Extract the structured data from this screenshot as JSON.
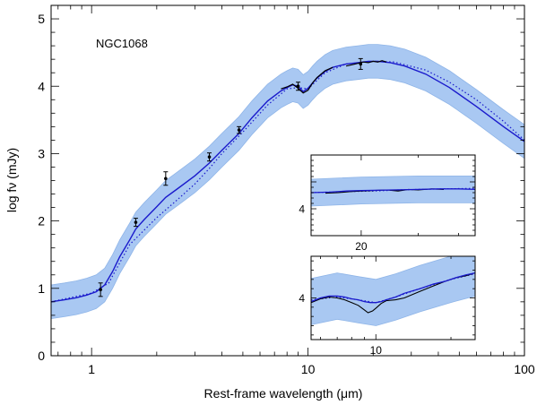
{
  "chart_data": [
    {
      "type": "line",
      "object_label": "NGC1068",
      "xlabel": "Rest-frame wavelength (μm)",
      "ylabel": "log fν (mJy)",
      "xscale": "log",
      "xlim": [
        0.65,
        100
      ],
      "ylim": [
        0,
        5.2
      ],
      "x_tick_labels": [
        {
          "value": 1,
          "label": "1"
        },
        {
          "value": 10,
          "label": "10"
        },
        {
          "value": 100,
          "label": "100"
        }
      ],
      "y_tick_labels": [
        {
          "value": 0,
          "label": "0"
        },
        {
          "value": 1,
          "label": "1"
        },
        {
          "value": 2,
          "label": "2"
        },
        {
          "value": 3,
          "label": "3"
        },
        {
          "value": 4,
          "label": "4"
        },
        {
          "value": 5,
          "label": "5"
        }
      ],
      "colors": {
        "model": "#1a1acc",
        "band": "#a9c8f2",
        "band_edge": "#8fb5e8",
        "data": "#000000"
      },
      "series": [
        {
          "style": "solid",
          "x": [
            0.65,
            0.75,
            0.85,
            0.95,
            1.05,
            1.15,
            1.25,
            1.35,
            1.5,
            1.6,
            1.75,
            2.0,
            2.2,
            2.5,
            3.0,
            3.5,
            4.0,
            4.8,
            5.5,
            6.5,
            7.5,
            8.0,
            8.5,
            9.0,
            9.5,
            10.0,
            10.5,
            11.0,
            12.0,
            13.0,
            15.0,
            17.0,
            19.0,
            21.0,
            24.0,
            28.0,
            35.0,
            45.0,
            60.0,
            80.0,
            100.0
          ],
          "y": [
            0.8,
            0.83,
            0.86,
            0.9,
            0.95,
            1.05,
            1.25,
            1.47,
            1.72,
            1.88,
            2.02,
            2.21,
            2.35,
            2.48,
            2.67,
            2.86,
            3.05,
            3.3,
            3.53,
            3.78,
            3.93,
            3.98,
            4.02,
            4.0,
            3.92,
            3.97,
            4.05,
            4.12,
            4.22,
            4.28,
            4.33,
            4.35,
            4.37,
            4.37,
            4.35,
            4.3,
            4.18,
            3.98,
            3.7,
            3.4,
            3.18
          ]
        },
        {
          "style": "dotted",
          "x": [
            0.65,
            1.0,
            1.2,
            1.5,
            2.0,
            2.5,
            3.0,
            3.5,
            4.0,
            5.0,
            6.5,
            8.0,
            9.0,
            10.0,
            12.0,
            15.0,
            20.0,
            25.0,
            35.0,
            45.0,
            60.0,
            80.0,
            100.0
          ],
          "y": [
            0.8,
            0.93,
            1.08,
            1.65,
            2.05,
            2.32,
            2.55,
            2.78,
            3.0,
            3.32,
            3.72,
            3.96,
            3.98,
            3.96,
            4.2,
            4.33,
            4.37,
            4.36,
            4.24,
            4.06,
            3.8,
            3.48,
            3.2
          ]
        }
      ],
      "band": {
        "x": [
          0.65,
          0.75,
          0.85,
          0.95,
          1.05,
          1.15,
          1.25,
          1.35,
          1.5,
          1.6,
          1.75,
          2.0,
          2.2,
          2.5,
          3.0,
          3.5,
          4.0,
          4.8,
          5.5,
          6.5,
          7.5,
          8.0,
          8.5,
          9.0,
          9.5,
          10.0,
          10.5,
          11.0,
          12.0,
          13.0,
          15.0,
          17.0,
          19.0,
          21.0,
          24.0,
          28.0,
          35.0,
          45.0,
          60.0,
          80.0,
          100.0
        ],
        "width": 0.25
      },
      "points": {
        "x": [
          1.1,
          1.6,
          2.2,
          3.5,
          4.8,
          9.0
        ],
        "y": [
          0.98,
          1.98,
          2.63,
          2.95,
          3.35,
          4.0
        ],
        "yerr": [
          0.1,
          0.06,
          0.1,
          0.06,
          0.05,
          0.06
        ]
      },
      "spectrum": {
        "x": [
          7.5,
          8.0,
          8.5,
          9.0,
          9.5,
          10.0,
          10.5,
          11.0,
          12.0,
          13.0
        ],
        "y": [
          3.96,
          3.99,
          4.03,
          3.97,
          3.9,
          3.94,
          4.05,
          4.13,
          4.23,
          4.28
        ]
      },
      "ir_spectrum": {
        "x": [
          15.0,
          16.0,
          17.0,
          18.0,
          19.0,
          20.0,
          21.0,
          22.0,
          23.0
        ],
        "y": [
          4.3,
          4.32,
          4.34,
          4.36,
          4.35,
          4.37,
          4.36,
          4.38,
          4.36
        ]
      },
      "spectrum_point": {
        "x": 17.5,
        "y": 4.33,
        "yerr": 0.08
      }
    },
    {
      "type": "line",
      "inset": "upper",
      "xscale": "log",
      "xlim": [
        14,
        45
      ],
      "ylim": [
        3.5,
        5.0
      ],
      "x_tick_labels": [
        {
          "value": 20,
          "label": "20"
        }
      ],
      "y_tick_labels": [
        {
          "value": 4,
          "label": "4"
        }
      ],
      "series": [
        {
          "style": "solid",
          "x": [
            14,
            16,
            18,
            20,
            25,
            30,
            35,
            40,
            45
          ],
          "y": [
            4.3,
            4.31,
            4.33,
            4.34,
            4.35,
            4.36,
            4.37,
            4.37,
            4.36
          ]
        },
        {
          "style": "dotted",
          "x": [
            14,
            18,
            22,
            26,
            30,
            36,
            45
          ],
          "y": [
            4.3,
            4.32,
            4.33,
            4.35,
            4.36,
            4.37,
            4.38
          ]
        },
        {
          "style": "data",
          "x": [
            15.5,
            17,
            18.5,
            20,
            22,
            24,
            26,
            28,
            30,
            33,
            36
          ],
          "y": [
            4.29,
            4.3,
            4.32,
            4.33,
            4.34,
            4.35,
            4.33,
            4.36,
            4.35,
            4.37,
            4.36
          ]
        }
      ],
      "band": {
        "x": [
          14,
          20,
          30,
          45
        ],
        "width": 0.25
      }
    },
    {
      "type": "line",
      "inset": "lower",
      "xscale": "log",
      "xlim": [
        5.5,
        25
      ],
      "ylim": [
        3.55,
        4.45
      ],
      "x_tick_labels": [
        {
          "value": 10,
          "label": "10"
        }
      ],
      "y_tick_labels": [
        {
          "value": 4,
          "label": "4"
        }
      ],
      "series": [
        {
          "style": "solid",
          "x": [
            5.5,
            6.0,
            6.5,
            7.0,
            7.5,
            8.0,
            8.5,
            9.0,
            9.5,
            10.0,
            10.5,
            11.0,
            12.0,
            13.0,
            15.0,
            17.0,
            19.0,
            21.0,
            23.0,
            25.0
          ],
          "y": [
            3.96,
            4.0,
            4.02,
            4.02,
            4.01,
            3.99,
            3.98,
            3.96,
            3.95,
            3.95,
            3.96,
            3.98,
            4.01,
            4.05,
            4.1,
            4.15,
            4.18,
            4.22,
            4.25,
            4.27
          ]
        },
        {
          "style": "dotted",
          "x": [
            5.5,
            7.0,
            8.5,
            10.0,
            12.0,
            15.0,
            20.0,
            25.0
          ],
          "y": [
            3.98,
            4.01,
            3.98,
            3.95,
            4.01,
            4.1,
            4.2,
            4.26
          ]
        },
        {
          "style": "data",
          "x": [
            5.5,
            6.0,
            6.5,
            7.0,
            7.5,
            8.0,
            8.5,
            9.0,
            9.3,
            9.7,
            10.0,
            10.5,
            11.0,
            12.0,
            13.0,
            15.0,
            17.0,
            19.0,
            21.0,
            23.0,
            25.0
          ],
          "y": [
            3.95,
            3.99,
            4.01,
            4.0,
            3.98,
            3.95,
            3.92,
            3.87,
            3.84,
            3.86,
            3.89,
            3.94,
            3.97,
            3.98,
            4.0,
            4.07,
            4.13,
            4.18,
            4.22,
            4.24,
            4.27
          ]
        }
      ],
      "band": {
        "x": [
          5.5,
          7.0,
          8.5,
          10.0,
          12.0,
          15.0,
          20.0,
          25.0
        ],
        "width": 0.25
      }
    }
  ]
}
